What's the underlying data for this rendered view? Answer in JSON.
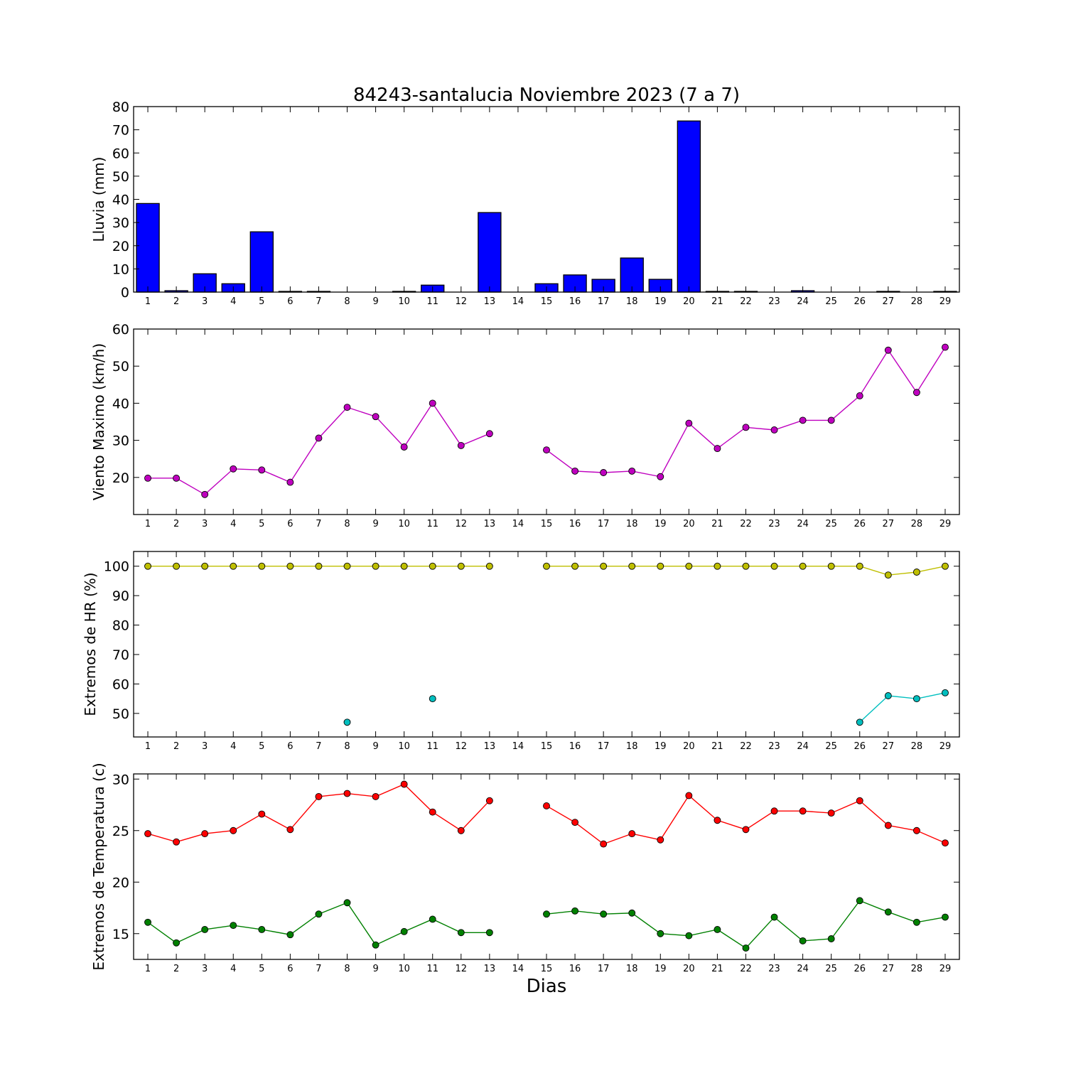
{
  "figure": {
    "title": "84243-santalucia Noviembre 2023  (7 a 7)",
    "xlabel": "Dias"
  },
  "chart_data": [
    {
      "type": "bar",
      "ylabel": "Lluvia (mm)",
      "ylim": [
        0,
        80
      ],
      "yticks": [
        0,
        10,
        20,
        30,
        40,
        50,
        60,
        70,
        80
      ],
      "categories": [
        1,
        2,
        3,
        4,
        5,
        6,
        7,
        8,
        9,
        10,
        11,
        12,
        13,
        14,
        15,
        16,
        17,
        18,
        19,
        20,
        21,
        22,
        23,
        24,
        25,
        26,
        27,
        28,
        29
      ],
      "series": [
        {
          "color": "#0000ff",
          "values": [
            38.2,
            0.6,
            7.9,
            3.6,
            26.0,
            0.3,
            0.3,
            0,
            0,
            0.3,
            3.0,
            0,
            34.3,
            0,
            3.6,
            7.4,
            5.5,
            14.7,
            5.5,
            73.8,
            0.3,
            0.3,
            0,
            0.6,
            0,
            0,
            0.3,
            0,
            0.3
          ]
        }
      ]
    },
    {
      "type": "line",
      "ylabel": "Viento Maximo (km/h)",
      "ylim": [
        10,
        60
      ],
      "yticks": [
        20,
        30,
        40,
        50,
        60
      ],
      "x": [
        1,
        2,
        3,
        4,
        5,
        6,
        7,
        8,
        9,
        10,
        11,
        12,
        13,
        14,
        15,
        16,
        17,
        18,
        19,
        20,
        21,
        22,
        23,
        24,
        25,
        26,
        27,
        28,
        29
      ],
      "series": [
        {
          "color": "#bf00bf",
          "values": [
            19.8,
            19.8,
            15.4,
            22.3,
            22.0,
            18.7,
            30.6,
            38.9,
            36.4,
            28.2,
            40.0,
            28.6,
            31.8,
            null,
            27.4,
            21.7,
            21.3,
            21.7,
            20.2,
            34.6,
            27.8,
            33.5,
            32.8,
            35.4,
            35.4,
            42.0,
            54.3,
            42.9,
            55.1
          ]
        }
      ]
    },
    {
      "type": "line",
      "ylabel": "Extremos de HR (%)",
      "ylim": [
        42,
        105
      ],
      "yticks": [
        50,
        60,
        70,
        80,
        90,
        100
      ],
      "x": [
        1,
        2,
        3,
        4,
        5,
        6,
        7,
        8,
        9,
        10,
        11,
        12,
        13,
        14,
        15,
        16,
        17,
        18,
        19,
        20,
        21,
        22,
        23,
        24,
        25,
        26,
        27,
        28,
        29
      ],
      "series": [
        {
          "color": "#bfbf00",
          "values": [
            100,
            100,
            100,
            100,
            100,
            100,
            100,
            100,
            100,
            100,
            100,
            100,
            100,
            null,
            100,
            100,
            100,
            100,
            100,
            100,
            100,
            100,
            100,
            100,
            100,
            100,
            97,
            98,
            100
          ]
        },
        {
          "color": "#00bfbf",
          "values": [
            null,
            null,
            null,
            null,
            null,
            null,
            null,
            47,
            null,
            null,
            55,
            null,
            null,
            null,
            null,
            null,
            null,
            null,
            null,
            null,
            null,
            null,
            null,
            null,
            null,
            47,
            56,
            55,
            57
          ]
        }
      ]
    },
    {
      "type": "line",
      "ylabel": "Extremos de Temperatura (c)",
      "ylim": [
        12.5,
        30.5
      ],
      "yticks": [
        15,
        20,
        25,
        30
      ],
      "x": [
        1,
        2,
        3,
        4,
        5,
        6,
        7,
        8,
        9,
        10,
        11,
        12,
        13,
        14,
        15,
        16,
        17,
        18,
        19,
        20,
        21,
        22,
        23,
        24,
        25,
        26,
        27,
        28,
        29
      ],
      "series": [
        {
          "color": "#ff0000",
          "values": [
            24.7,
            23.9,
            24.7,
            25.0,
            26.6,
            25.1,
            28.3,
            28.6,
            28.3,
            29.5,
            26.8,
            25.0,
            27.9,
            null,
            27.4,
            25.8,
            23.7,
            24.7,
            24.1,
            28.4,
            26.0,
            25.1,
            26.9,
            26.9,
            26.7,
            27.9,
            25.5,
            25.0,
            23.8
          ]
        },
        {
          "color": "#008000",
          "values": [
            16.1,
            14.1,
            15.4,
            15.8,
            15.4,
            14.9,
            16.9,
            18.0,
            13.9,
            15.2,
            16.4,
            15.1,
            15.1,
            null,
            16.9,
            17.2,
            16.9,
            17.0,
            15.0,
            14.8,
            15.4,
            13.6,
            16.6,
            14.3,
            14.5,
            18.2,
            17.1,
            16.1,
            16.6
          ]
        }
      ]
    }
  ]
}
